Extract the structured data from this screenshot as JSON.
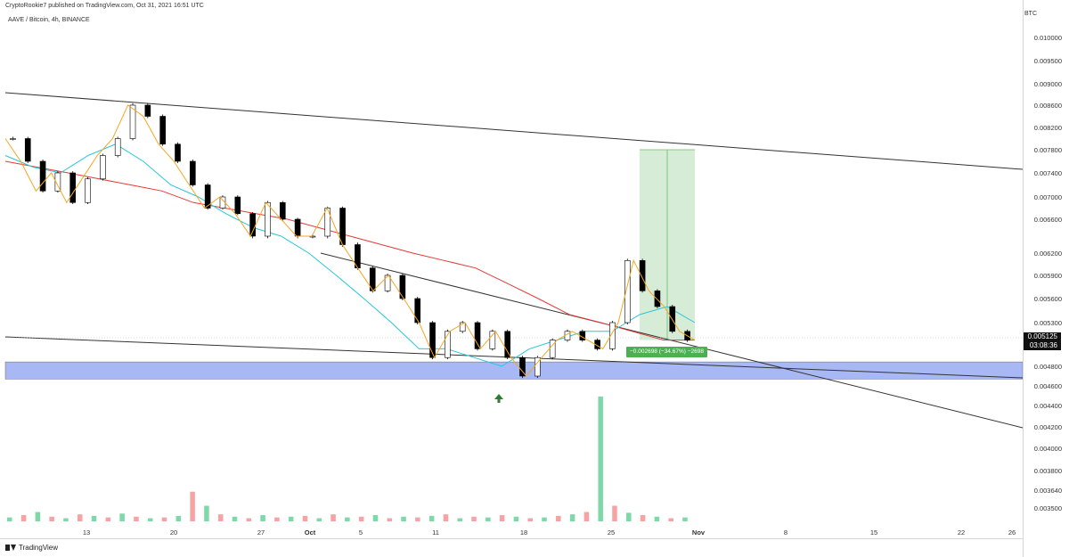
{
  "header": {
    "published_by": "CryptoRookie7 published on TradingView.com, Oct 31, 2021 16:51 UTC",
    "symbol": "AAVE / Bitcoin, 4h, BINANCE"
  },
  "branding": {
    "name": "TradingView"
  },
  "price_scale": {
    "unit": "BTC",
    "current_price": "0.005125",
    "countdown": "03:08:36"
  },
  "position_tool": {
    "stats": "−0.002698 (−34.67%) −2698"
  },
  "colors": {
    "up": "#ffffff",
    "down": "#000000",
    "ma_red": "#e53935",
    "ma_blue": "#26c6da",
    "ma_orange": "#f5a623",
    "support_zone": "#a8b8f5",
    "profit_zone": "#c8e6c9",
    "volume_up": "#7fd8a8",
    "volume_down": "#f5a3a3",
    "arrow": "#2e7d32"
  },
  "icons": {
    "signal_arrow": "up-arrow-icon"
  },
  "chart_data": {
    "type": "line",
    "title": "AAVE / Bitcoin, 4h, BINANCE",
    "x_tick_labels": [
      "13",
      "20",
      "27",
      "Oct",
      "5",
      "11",
      "18",
      "25",
      "Nov",
      "8",
      "15",
      "22",
      "26"
    ],
    "y_tick_labels": [
      "0.010000",
      "0.009500",
      "0.009000",
      "0.008600",
      "0.008200",
      "0.007800",
      "0.007400",
      "0.007000",
      "0.006600",
      "0.006200",
      "0.005900",
      "0.005600",
      "0.005300",
      "0.004800",
      "0.004600",
      "0.004400",
      "0.004200",
      "0.004000",
      "0.003800",
      "0.003640",
      "0.003500"
    ],
    "y_tick_values": [
      0.01,
      0.0095,
      0.009,
      0.0086,
      0.0082,
      0.0078,
      0.0074,
      0.007,
      0.0066,
      0.0062,
      0.0059,
      0.0056,
      0.0053,
      0.0048,
      0.0046,
      0.0044,
      0.0042,
      0.004,
      0.0038,
      0.00364,
      0.0035
    ],
    "ylim": [
      0.0035,
      0.0101
    ],
    "series": [
      {
        "values": [
          0.008,
          0.0076,
          0.0071,
          0.0074,
          0.0069,
          0.0073,
          0.0077,
          0.008,
          0.0086,
          0.0084,
          0.0079,
          0.0076,
          0.0072,
          0.0068,
          0.007,
          0.0067,
          0.0064,
          0.0069,
          0.0066,
          0.0064,
          0.0064,
          0.0068,
          0.0063,
          0.006,
          0.0057,
          0.0059,
          0.0056,
          0.0053,
          0.0049,
          0.0052,
          0.0053,
          0.005,
          0.0052,
          0.0049,
          0.0047,
          0.0049,
          0.0051,
          0.0052,
          0.0051,
          0.005,
          0.0053,
          0.0061,
          0.0057,
          0.0055,
          0.0052,
          0.0051
        ]
      },
      {
        "values": [
          0.0076,
          0.0075,
          0.0074,
          0.0073,
          0.0072,
          0.0071,
          0.0069,
          0.0068,
          0.0067,
          0.0066,
          0.0065,
          0.0064,
          0.0063,
          0.0062,
          0.0061,
          0.006,
          0.0058,
          0.0056,
          0.0054,
          0.0053,
          0.0052,
          0.0051,
          0.0051
        ]
      },
      {
        "values": [
          0.0077,
          0.0075,
          0.0074,
          0.0077,
          0.0079,
          0.0076,
          0.0072,
          0.007,
          0.0067,
          0.0065,
          0.0064,
          0.0062,
          0.0059,
          0.0056,
          0.0053,
          0.005,
          0.005,
          0.0049,
          0.0048,
          0.005,
          0.0051,
          0.0052,
          0.0052,
          0.0054,
          0.0055,
          0.0053
        ]
      }
    ],
    "zones": [
      {
        "name": "support",
        "y_range": [
          0.00467,
          0.00485
        ]
      },
      {
        "name": "profit-target",
        "y_range": [
          0.0051,
          0.0078
        ]
      }
    ],
    "volume": [
      5,
      8,
      12,
      6,
      4,
      9,
      7,
      5,
      10,
      6,
      4,
      5,
      7,
      38,
      20,
      9,
      6,
      4,
      8,
      5,
      6,
      7,
      4,
      9,
      5,
      6,
      8,
      4,
      6,
      5,
      7,
      9,
      4,
      6,
      5,
      8,
      6,
      4,
      5,
      7,
      9,
      12,
      160,
      20,
      11,
      8,
      6,
      4,
      5
    ],
    "grid": false
  }
}
